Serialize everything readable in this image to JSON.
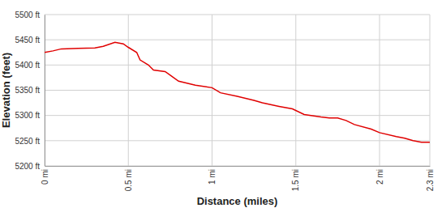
{
  "chart_data": {
    "type": "line",
    "xlabel": "Distance (miles)",
    "ylabel": "Elevation (feet)",
    "x": [
      0,
      0.05,
      0.1,
      0.2,
      0.3,
      0.35,
      0.42,
      0.47,
      0.5,
      0.55,
      0.57,
      0.62,
      0.65,
      0.72,
      0.75,
      0.8,
      0.9,
      1.0,
      1.05,
      1.15,
      1.25,
      1.3,
      1.4,
      1.48,
      1.55,
      1.65,
      1.7,
      1.75,
      1.8,
      1.85,
      1.95,
      2.0,
      2.1,
      2.15,
      2.2,
      2.25,
      2.3
    ],
    "values": [
      5425,
      5428,
      5432,
      5433,
      5434,
      5437,
      5445,
      5442,
      5435,
      5425,
      5410,
      5400,
      5390,
      5387,
      5380,
      5368,
      5360,
      5355,
      5345,
      5338,
      5330,
      5325,
      5318,
      5313,
      5302,
      5297,
      5295,
      5295,
      5290,
      5282,
      5273,
      5266,
      5258,
      5255,
      5250,
      5247,
      5247
    ],
    "color": "#e00000",
    "xlim": [
      0,
      2.3
    ],
    "xticks": [
      {
        "value": 0,
        "label": "0 mi"
      },
      {
        "value": 0.5,
        "label": "0.5 mi"
      },
      {
        "value": 1,
        "label": "1 mi"
      },
      {
        "value": 1.5,
        "label": "1.5 mi"
      },
      {
        "value": 2,
        "label": "2 mi"
      },
      {
        "value": 2.3,
        "label": "2.3 mi"
      }
    ],
    "ylim": [
      5200,
      5500
    ],
    "yticks": [
      {
        "value": 5200,
        "label": "5200 ft"
      },
      {
        "value": 5250,
        "label": "5250 ft"
      },
      {
        "value": 5300,
        "label": "5300 ft"
      },
      {
        "value": 5350,
        "label": "5350 ft"
      },
      {
        "value": 5400,
        "label": "5400 ft"
      },
      {
        "value": 5450,
        "label": "5450 ft"
      },
      {
        "value": 5500,
        "label": "5500 ft"
      }
    ],
    "grid": true
  }
}
